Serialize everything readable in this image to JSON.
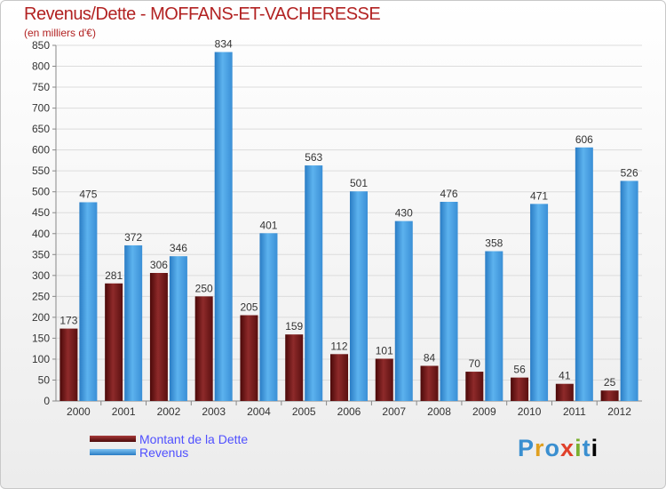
{
  "chart_data": {
    "type": "bar",
    "title": "Revenus/Dette - MOFFANS-ET-VACHERESSE",
    "subtitle": "(en milliers d'€)",
    "categories": [
      "2000",
      "2001",
      "2002",
      "2003",
      "2004",
      "2005",
      "2006",
      "2007",
      "2008",
      "2009",
      "2010",
      "2011",
      "2012"
    ],
    "series": [
      {
        "name": "Montant de la Dette",
        "color": "#7a1a1a",
        "values": [
          173,
          281,
          306,
          250,
          205,
          159,
          112,
          101,
          84,
          70,
          56,
          41,
          25
        ]
      },
      {
        "name": "Revenus",
        "color": "#3a9de0",
        "values": [
          475,
          372,
          346,
          834,
          401,
          563,
          501,
          430,
          476,
          358,
          471,
          606,
          526
        ]
      }
    ],
    "ylim": [
      0,
      850
    ],
    "yticks": [
      0,
      50,
      100,
      150,
      200,
      250,
      300,
      350,
      400,
      450,
      500,
      550,
      600,
      650,
      700,
      750,
      800,
      850
    ],
    "xlabel": "",
    "ylabel": "",
    "grid": true,
    "legend_position": "bottom-left"
  },
  "logo": {
    "letters": [
      "P",
      "r",
      "o",
      "x",
      "i",
      "t",
      "i"
    ]
  }
}
